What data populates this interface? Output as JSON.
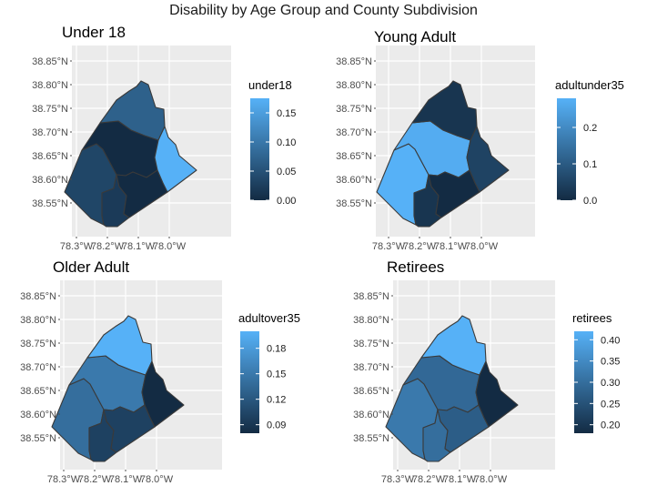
{
  "title": "Disability by Age Group and County Subdivision",
  "chart_data": [
    {
      "type": "choropleth",
      "panel_title": "Under 18",
      "legend_title": "under18",
      "legend_breaks": [
        "0.00",
        "0.05",
        "0.10",
        "0.15"
      ],
      "scale_range": [
        0,
        0.175
      ],
      "xlabels": [
        "78.3°W",
        "78.2°W",
        "78.1°W",
        "78.0°W"
      ],
      "ylabels": [
        "38.85°N",
        "38.80°N",
        "38.75°N",
        "38.70°N",
        "38.65°N",
        "38.60°N",
        "38.55°N"
      ],
      "regions": [
        {
          "id": "north",
          "value": 0.07
        },
        {
          "id": "east",
          "value": 0.175
        },
        {
          "id": "west",
          "value": 0.035
        },
        {
          "id": "center",
          "value": 0.0
        },
        {
          "id": "southeast",
          "value": 0.0
        },
        {
          "id": "south",
          "value": 0.02
        }
      ]
    },
    {
      "type": "choropleth",
      "panel_title": "Young Adult",
      "legend_title": "adultunder35",
      "legend_breaks": [
        "0.0",
        "0.1",
        "0.2"
      ],
      "scale_range": [
        0,
        0.28
      ],
      "xlabels": [
        "78.3°W",
        "78.2°W",
        "78.1°W",
        "78.0°W"
      ],
      "ylabels": [
        "38.85°N",
        "38.80°N",
        "38.75°N",
        "38.70°N",
        "38.65°N",
        "38.60°N",
        "38.55°N"
      ],
      "regions": [
        {
          "id": "north",
          "value": 0.02
        },
        {
          "id": "east",
          "value": 0.05
        },
        {
          "id": "west",
          "value": 0.28
        },
        {
          "id": "center",
          "value": 0.27
        },
        {
          "id": "southeast",
          "value": 0.0
        },
        {
          "id": "south",
          "value": 0.02
        }
      ]
    },
    {
      "type": "choropleth",
      "panel_title": "Older Adult",
      "legend_title": "adultover35",
      "legend_breaks": [
        "0.09",
        "0.12",
        "0.15",
        "0.18"
      ],
      "scale_range": [
        0.08,
        0.2
      ],
      "xlabels": [
        "78.3°W",
        "78.2°W",
        "78.1°W",
        "78.0°W"
      ],
      "ylabels": [
        "38.85°N",
        "38.80°N",
        "38.75°N",
        "38.70°N",
        "38.65°N",
        "38.60°N",
        "38.55°N"
      ],
      "regions": [
        {
          "id": "north",
          "value": 0.2
        },
        {
          "id": "east",
          "value": 0.08
        },
        {
          "id": "west",
          "value": 0.14
        },
        {
          "id": "center",
          "value": 0.15
        },
        {
          "id": "southeast",
          "value": 0.1
        },
        {
          "id": "south",
          "value": 0.1
        }
      ]
    },
    {
      "type": "choropleth",
      "panel_title": "Retirees",
      "legend_title": "retirees",
      "legend_breaks": [
        "0.20",
        "0.25",
        "0.30",
        "0.35",
        "0.40"
      ],
      "scale_range": [
        0.18,
        0.42
      ],
      "xlabels": [
        "78.3°W",
        "78.2°W",
        "78.1°W",
        "78.0°W"
      ],
      "ylabels": [
        "38.85°N",
        "38.80°N",
        "38.75°N",
        "38.70°N",
        "38.65°N",
        "38.60°N",
        "38.55°N"
      ],
      "regions": [
        {
          "id": "north",
          "value": 0.42
        },
        {
          "id": "east",
          "value": 0.18
        },
        {
          "id": "west",
          "value": 0.32
        },
        {
          "id": "center",
          "value": 0.29
        },
        {
          "id": "southeast",
          "value": 0.27
        },
        {
          "id": "south",
          "value": 0.3
        }
      ]
    }
  ]
}
